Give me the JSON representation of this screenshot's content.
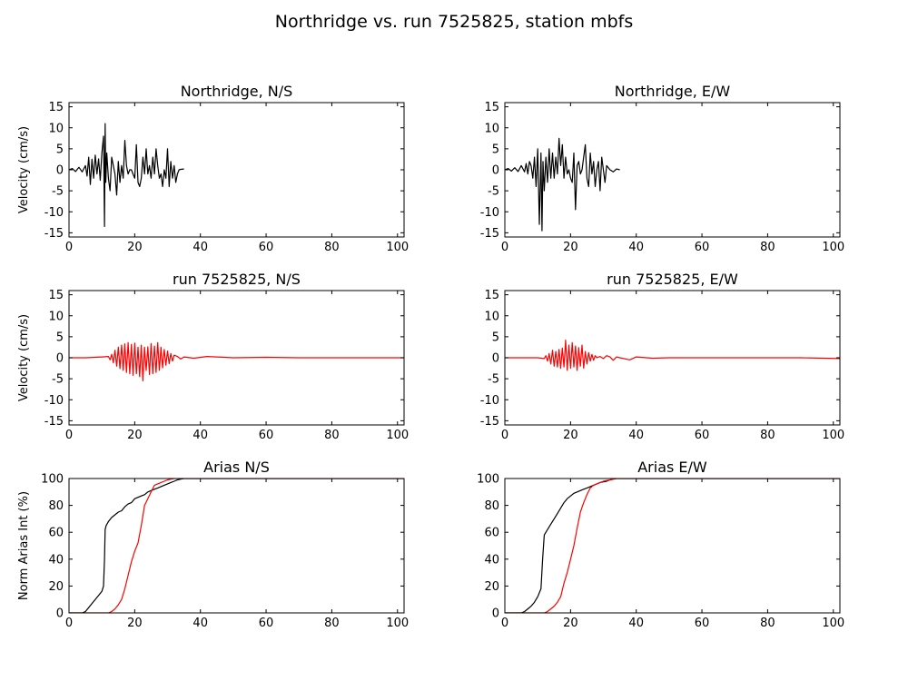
{
  "figure": {
    "title": "Northridge vs. run 7525825, station mbfs"
  },
  "chart_data": [
    {
      "type": "line",
      "title": "Northridge, N/S",
      "xlabel": "",
      "ylabel": "Velocity (cm/s)",
      "xlim": [
        0,
        102
      ],
      "ylim": [
        -16,
        16
      ],
      "xticks": [
        "0",
        "20",
        "40",
        "60",
        "80",
        "100"
      ],
      "yticks": [
        "15",
        "10",
        "5",
        "0",
        "-5",
        "-10",
        "-15"
      ],
      "grid": false,
      "series": [
        {
          "color": "#000000",
          "x": [
            0,
            1,
            2,
            3,
            4,
            5,
            5.5,
            6,
            6.5,
            7,
            7.5,
            8,
            8.5,
            9,
            9.5,
            10,
            10.5,
            10.8,
            11,
            11.2,
            11.5,
            12,
            12.5,
            13,
            13.5,
            14,
            14.5,
            15,
            15.5,
            16,
            16.5,
            17,
            17.5,
            18,
            18.5,
            19,
            19.5,
            20,
            20.5,
            21,
            21.5,
            22,
            22.5,
            23,
            23.5,
            24,
            24.5,
            25,
            25.5,
            26,
            26.5,
            27,
            27.5,
            28,
            28.5,
            29,
            29.5,
            30,
            30.5,
            31,
            31.5,
            32,
            32.5,
            33,
            33.5,
            34,
            35
          ],
          "y": [
            0,
            0.3,
            -0.4,
            0.6,
            -0.5,
            1,
            -1.5,
            3,
            -3.5,
            2.5,
            -2,
            3.5,
            -1,
            2.6,
            -2.5,
            4,
            8,
            -13.5,
            11,
            -3,
            4,
            -2,
            -5,
            3,
            1,
            -1,
            -6,
            2,
            -3,
            1,
            -2,
            7,
            1,
            -1,
            0,
            0,
            -1,
            -2,
            6,
            -3,
            -4,
            -2,
            3,
            -1,
            5,
            -1,
            1,
            -2,
            3,
            -1,
            5,
            1,
            -2,
            -1,
            -4,
            0,
            -2,
            5,
            -4,
            2,
            -2,
            1,
            -3,
            -1,
            0,
            0.1,
            0.2
          ]
        }
      ]
    },
    {
      "type": "line",
      "title": "Northridge, E/W",
      "xlabel": "",
      "ylabel": "",
      "xlim": [
        0,
        102
      ],
      "ylim": [
        -16,
        16
      ],
      "xticks": [
        "0",
        "20",
        "40",
        "60",
        "80",
        "100"
      ],
      "yticks": [
        "15",
        "10",
        "5",
        "0",
        "-5",
        "-10",
        "-15"
      ],
      "grid": false,
      "series": [
        {
          "color": "#000000",
          "x": [
            0,
            1,
            2,
            3,
            4,
            5,
            6,
            6.5,
            7,
            7.5,
            8,
            8.5,
            9,
            9.5,
            10,
            10.5,
            11,
            11.3,
            11.6,
            12,
            12.5,
            13,
            13.5,
            14,
            14.5,
            15,
            15.5,
            16,
            16.5,
            17,
            17.5,
            18,
            18.5,
            19,
            19.5,
            20,
            20.5,
            21,
            21.5,
            22,
            22.5,
            23,
            23.5,
            24,
            24.5,
            25,
            25.5,
            26,
            26.5,
            27,
            27.5,
            28,
            28.5,
            29,
            29.5,
            30,
            30.5,
            31,
            31.5,
            32,
            33,
            34,
            35
          ],
          "y": [
            0,
            0.3,
            -0.3,
            0.5,
            -0.4,
            1,
            -0.5,
            1.5,
            -1,
            2,
            1,
            -2,
            3,
            -4,
            5,
            -13,
            4,
            -14.5,
            2,
            -5,
            3,
            -3,
            5,
            -2,
            4,
            -2,
            3,
            -1,
            7.5,
            1,
            6,
            -2,
            3,
            -1,
            0,
            -2,
            -3,
            4,
            -9.5,
            1,
            2,
            -1,
            0,
            3,
            6,
            -2,
            -4,
            4,
            -1,
            2,
            -4,
            0,
            2,
            -5,
            3,
            0,
            -3,
            1,
            0.5,
            0,
            -0.5,
            0.2,
            0
          ]
        }
      ]
    },
    {
      "type": "line",
      "title": "run 7525825, N/S",
      "xlabel": "",
      "ylabel": "Velocity (cm/s)",
      "xlim": [
        0,
        102
      ],
      "ylim": [
        -16,
        16
      ],
      "xticks": [
        "0",
        "20",
        "40",
        "60",
        "80",
        "100"
      ],
      "yticks": [
        "15",
        "10",
        "5",
        "0",
        "-5",
        "-10",
        "-15"
      ],
      "grid": false,
      "series": [
        {
          "color": "#ff0000",
          "x": [
            0,
            5,
            10,
            12,
            12.5,
            13,
            13.5,
            14,
            14.5,
            15,
            15.5,
            16,
            16.5,
            17,
            17.5,
            18,
            18.5,
            19,
            19.5,
            20,
            20.5,
            21,
            21.5,
            22,
            22.5,
            23,
            23.5,
            24,
            24.5,
            25,
            25.5,
            26,
            26.5,
            27,
            27.5,
            28,
            28.5,
            29,
            29.5,
            30,
            30.5,
            31,
            31.5,
            32,
            33,
            34,
            35,
            38,
            42,
            50,
            60,
            70,
            80,
            90,
            102
          ],
          "y": [
            0,
            0,
            0.2,
            0.3,
            -0.5,
            0.8,
            -1.2,
            1.8,
            -2,
            2.5,
            -2.6,
            3,
            -3,
            3.3,
            -3.5,
            3.6,
            -3.8,
            3.2,
            -4.2,
            3.5,
            -3.8,
            2.5,
            -4.5,
            3,
            -5.5,
            2.5,
            -3,
            2.6,
            -4,
            3.4,
            -3.8,
            2.8,
            -3.5,
            3.6,
            -3,
            2.5,
            -2.4,
            2,
            -1.8,
            1.6,
            -1.4,
            1,
            -0.8,
            0.6,
            0.3,
            -0.3,
            0.2,
            -0.1,
            0.3,
            0,
            0.1,
            0,
            0,
            0,
            0
          ]
        }
      ]
    },
    {
      "type": "line",
      "title": "run 7525825, E/W",
      "xlabel": "",
      "ylabel": "",
      "xlim": [
        0,
        102
      ],
      "ylim": [
        -16,
        16
      ],
      "xticks": [
        "0",
        "20",
        "40",
        "60",
        "80",
        "100"
      ],
      "yticks": [
        "15",
        "10",
        "5",
        "0",
        "-5",
        "-10",
        "-15"
      ],
      "grid": false,
      "series": [
        {
          "color": "#ff0000",
          "x": [
            0,
            5,
            10,
            12,
            12.5,
            13,
            13.5,
            14,
            14.5,
            15,
            15.5,
            16,
            16.5,
            17,
            17.5,
            18,
            18.5,
            19,
            19.5,
            20,
            20.5,
            21,
            21.5,
            22,
            22.5,
            23,
            23.5,
            24,
            24.5,
            25,
            25.5,
            26,
            26.5,
            27,
            27.5,
            28,
            29,
            30,
            31,
            32,
            33,
            34,
            35,
            38,
            40,
            45,
            50,
            60,
            70,
            80,
            90,
            102
          ],
          "y": [
            0,
            0,
            0,
            -0.2,
            0.5,
            -0.8,
            1,
            -1.5,
            1.8,
            -2,
            1.5,
            -2.2,
            2,
            -2.5,
            2.3,
            -2.2,
            4.2,
            -3,
            3,
            -2.5,
            3.6,
            -2.2,
            2.8,
            -3,
            2.4,
            -2,
            3,
            -2.5,
            1.5,
            -1.5,
            1.2,
            -0.8,
            0.8,
            -0.6,
            0.5,
            0,
            0.3,
            -0.2,
            0.5,
            0.2,
            -0.6,
            0.2,
            0,
            -0.5,
            0.2,
            -0.1,
            0,
            0,
            0,
            0,
            0,
            -0.2
          ]
        }
      ]
    },
    {
      "type": "line",
      "title": "Arias N/S",
      "xlabel": "",
      "ylabel": "Norm Arias Int (%)",
      "xlim": [
        0,
        102
      ],
      "ylim": [
        0,
        100
      ],
      "xticks": [
        "0",
        "20",
        "40",
        "60",
        "80",
        "100"
      ],
      "yticks": [
        "100",
        "80",
        "60",
        "40",
        "20",
        "0"
      ],
      "grid": false,
      "series": [
        {
          "color": "#000000",
          "x": [
            0,
            4,
            5,
            6,
            7,
            8,
            9,
            10,
            10.5,
            10.8,
            11,
            11.3,
            12,
            13,
            14,
            15,
            16,
            17,
            18,
            19,
            20,
            21,
            22,
            23,
            24,
            25,
            26,
            27,
            28,
            29,
            30,
            31,
            32,
            33,
            34,
            35,
            36,
            102
          ],
          "y": [
            0,
            0,
            1,
            4,
            7,
            10,
            13,
            16,
            20,
            40,
            62,
            65,
            68,
            71,
            73,
            75,
            76,
            79,
            81,
            82,
            85,
            86,
            87,
            88,
            90,
            91,
            92,
            93,
            94,
            95,
            96,
            97,
            98,
            99,
            99.5,
            100,
            100,
            100
          ]
        },
        {
          "color": "#ff0000",
          "x": [
            0,
            10,
            12,
            13,
            14,
            15,
            16,
            17,
            18,
            19,
            20,
            21,
            22,
            23,
            24,
            25,
            26,
            27,
            28,
            29,
            30,
            31,
            32,
            33,
            34,
            102
          ],
          "y": [
            0,
            0,
            0,
            1,
            3,
            6,
            10,
            18,
            28,
            38,
            46,
            52,
            65,
            80,
            85,
            90,
            95,
            96,
            97,
            98,
            99,
            99.5,
            100,
            100,
            100,
            100
          ]
        }
      ]
    },
    {
      "type": "line",
      "title": "Arias E/W",
      "xlabel": "",
      "ylabel": "",
      "xlim": [
        0,
        102
      ],
      "ylim": [
        0,
        100
      ],
      "xticks": [
        "0",
        "20",
        "40",
        "60",
        "80",
        "100"
      ],
      "yticks": [
        "100",
        "80",
        "60",
        "40",
        "20",
        "0"
      ],
      "grid": false,
      "series": [
        {
          "color": "#000000",
          "x": [
            0,
            5,
            6,
            7,
            8,
            9,
            10,
            11,
            11.5,
            12,
            13,
            14,
            15,
            16,
            17,
            18,
            19,
            20,
            21,
            22,
            23,
            24,
            25,
            26,
            27,
            28,
            29,
            30,
            31,
            32,
            33,
            34,
            35,
            102
          ],
          "y": [
            0,
            0,
            1,
            3,
            5,
            8,
            12,
            18,
            40,
            58,
            62,
            66,
            70,
            74,
            78,
            82,
            85,
            87,
            89,
            90,
            91,
            92,
            93,
            94,
            95,
            96,
            97,
            97.5,
            98,
            99,
            99.5,
            100,
            100,
            100
          ]
        },
        {
          "color": "#ff0000",
          "x": [
            0,
            12,
            13,
            14,
            15,
            16,
            17,
            18,
            19,
            20,
            21,
            22,
            23,
            24,
            25,
            26,
            27,
            28,
            29,
            30,
            31,
            32,
            33,
            34,
            35,
            102
          ],
          "y": [
            0,
            0,
            1,
            3,
            5,
            8,
            12,
            22,
            30,
            40,
            50,
            63,
            75,
            82,
            88,
            93,
            95,
            96,
            97,
            98,
            98.5,
            99,
            99.5,
            100,
            100,
            100
          ]
        }
      ]
    }
  ]
}
